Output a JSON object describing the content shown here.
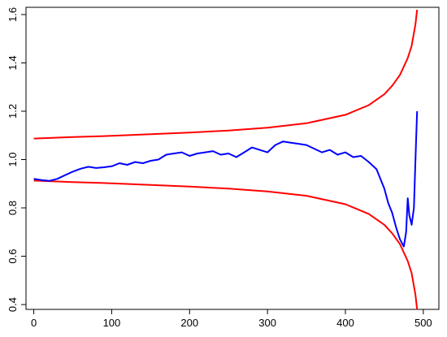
{
  "chart_data": {
    "type": "line",
    "title": "",
    "xlabel": "",
    "ylabel": "",
    "xlim": [
      -10,
      520
    ],
    "ylim": [
      0.38,
      1.63
    ],
    "xticks": [
      0,
      100,
      200,
      300,
      400,
      500
    ],
    "yticks": [
      0.4,
      0.6,
      0.8,
      1.0,
      1.2,
      1.4,
      1.6
    ],
    "xtick_labels": [
      "0",
      "100",
      "200",
      "300",
      "400",
      "500"
    ],
    "ytick_labels": [
      "0.4",
      "0.6",
      "0.8",
      "1.0",
      "1.2",
      "1.4",
      "1.6"
    ],
    "grid": false,
    "legend": "none",
    "series": [
      {
        "color": "#ff0000",
        "x": [
          0,
          50,
          100,
          150,
          200,
          250,
          300,
          350,
          400,
          430,
          450,
          460,
          470,
          480,
          485,
          490,
          492
        ],
        "y": [
          1.087,
          1.093,
          1.098,
          1.105,
          1.112,
          1.12,
          1.132,
          1.15,
          1.185,
          1.225,
          1.27,
          1.305,
          1.35,
          1.42,
          1.47,
          1.56,
          1.62
        ]
      },
      {
        "color": "#ff0000",
        "x": [
          0,
          50,
          100,
          150,
          200,
          250,
          300,
          350,
          400,
          430,
          450,
          460,
          470,
          480,
          485,
          490,
          492
        ],
        "y": [
          0.913,
          0.907,
          0.902,
          0.895,
          0.888,
          0.88,
          0.868,
          0.85,
          0.815,
          0.775,
          0.73,
          0.695,
          0.65,
          0.58,
          0.53,
          0.44,
          0.38
        ]
      },
      {
        "color": "#0000ff",
        "x": [
          0,
          10,
          20,
          30,
          40,
          50,
          60,
          70,
          80,
          90,
          100,
          110,
          120,
          130,
          140,
          150,
          160,
          170,
          180,
          190,
          200,
          210,
          220,
          230,
          240,
          250,
          260,
          270,
          280,
          290,
          300,
          310,
          320,
          330,
          340,
          350,
          360,
          370,
          380,
          390,
          400,
          410,
          420,
          430,
          440,
          450,
          455,
          460,
          465,
          470,
          475,
          478,
          480,
          482,
          485,
          488,
          490,
          492
        ],
        "y": [
          0.92,
          0.915,
          0.912,
          0.92,
          0.935,
          0.95,
          0.962,
          0.97,
          0.965,
          0.968,
          0.972,
          0.985,
          0.978,
          0.99,
          0.985,
          0.995,
          1.0,
          1.02,
          1.025,
          1.03,
          1.015,
          1.025,
          1.03,
          1.035,
          1.02,
          1.025,
          1.01,
          1.03,
          1.05,
          1.04,
          1.03,
          1.06,
          1.075,
          1.07,
          1.065,
          1.06,
          1.045,
          1.03,
          1.04,
          1.02,
          1.03,
          1.01,
          1.015,
          0.99,
          0.96,
          0.88,
          0.82,
          0.78,
          0.72,
          0.67,
          0.64,
          0.7,
          0.84,
          0.77,
          0.73,
          0.8,
          1.0,
          1.2
        ]
      }
    ]
  }
}
